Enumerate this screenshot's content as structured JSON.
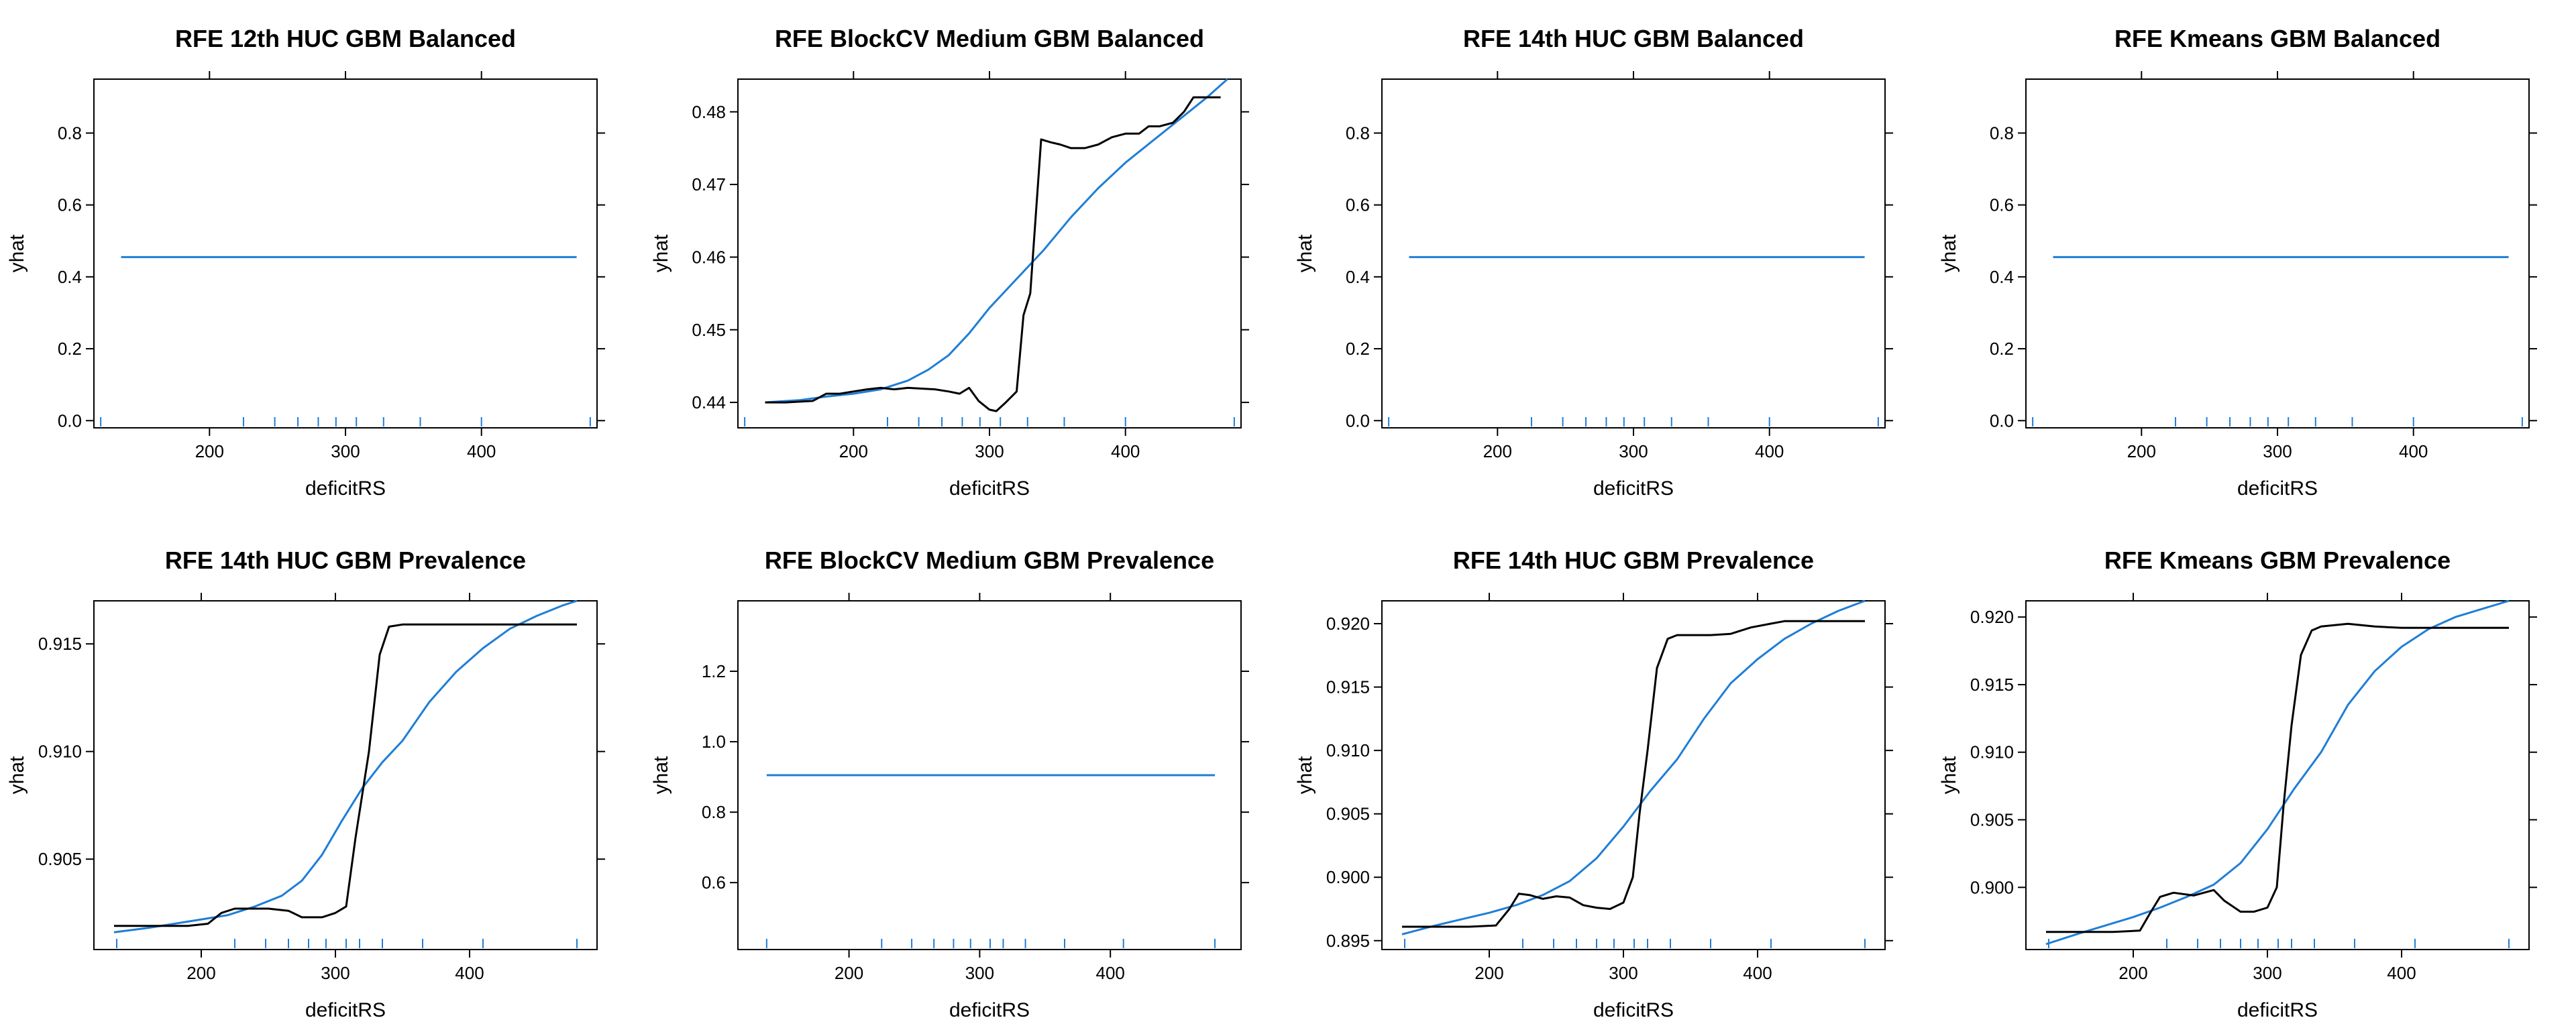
{
  "figure": {
    "colors": {
      "pdp_line": "#000000",
      "smooth_line": "#1f7ed6",
      "rug": "#1f7ed6",
      "frame": "#000000"
    },
    "rug_x": [
      120,
      225,
      248,
      265,
      280,
      293,
      308,
      328,
      355,
      400,
      480
    ]
  },
  "chart_data": [
    {
      "type": "line",
      "title": "RFE 12th HUC GBM Balanced",
      "xlabel": "deficitRS",
      "ylabel": "yhat",
      "xlim": [
        115,
        485
      ],
      "ylim": [
        -0.02,
        0.95
      ],
      "xticks": [
        200,
        300,
        400
      ],
      "yticks": [
        0.0,
        0.2,
        0.4,
        0.6,
        0.8
      ],
      "ytick_labels": [
        "0.0",
        "0.2",
        "0.4",
        "0.6",
        "0.8"
      ],
      "rug_x": [
        120,
        225,
        248,
        265,
        280,
        293,
        308,
        328,
        355,
        400,
        480
      ],
      "series": [
        {
          "role": "smooth",
          "x": [
            135,
            470
          ],
          "y": [
            0.455,
            0.455
          ]
        }
      ]
    },
    {
      "type": "line",
      "title": "RFE BlockCV Medium GBM Balanced",
      "xlabel": "deficitRS",
      "ylabel": "yhat",
      "xlim": [
        115,
        485
      ],
      "ylim": [
        0.4365,
        0.4845
      ],
      "xticks": [
        200,
        300,
        400
      ],
      "yticks": [
        0.44,
        0.45,
        0.46,
        0.47,
        0.48
      ],
      "ytick_labels": [
        "0.44",
        "0.45",
        "0.46",
        "0.47",
        "0.48"
      ],
      "rug_x": [
        120,
        225,
        248,
        265,
        280,
        293,
        308,
        328,
        355,
        400,
        480
      ],
      "series": [
        {
          "role": "pdp",
          "x": [
            135,
            150,
            170,
            180,
            190,
            200,
            210,
            220,
            230,
            240,
            250,
            260,
            270,
            278,
            285,
            292,
            300,
            305,
            312,
            320,
            325,
            330,
            338,
            345,
            352,
            360,
            370,
            380,
            390,
            400,
            410,
            417,
            425,
            435,
            443,
            450,
            470
          ],
          "y": [
            0.44,
            0.44,
            0.4402,
            0.4412,
            0.4412,
            0.4415,
            0.4418,
            0.442,
            0.4418,
            0.442,
            0.4419,
            0.4418,
            0.4415,
            0.4412,
            0.442,
            0.4402,
            0.439,
            0.4388,
            0.44,
            0.4415,
            0.452,
            0.455,
            0.4762,
            0.4758,
            0.4755,
            0.475,
            0.475,
            0.4755,
            0.4765,
            0.477,
            0.477,
            0.478,
            0.478,
            0.4785,
            0.48,
            0.482,
            0.482
          ]
        },
        {
          "role": "smooth",
          "x": [
            135,
            160,
            180,
            200,
            220,
            240,
            255,
            270,
            285,
            300,
            320,
            340,
            360,
            380,
            400,
            420,
            440,
            460,
            475
          ],
          "y": [
            0.44,
            0.4403,
            0.4408,
            0.4412,
            0.4418,
            0.443,
            0.4445,
            0.4465,
            0.4495,
            0.453,
            0.457,
            0.461,
            0.4655,
            0.4695,
            0.473,
            0.476,
            0.479,
            0.482,
            0.4845
          ]
        }
      ]
    },
    {
      "type": "line",
      "title": "RFE 14th HUC GBM Balanced",
      "xlabel": "deficitRS",
      "ylabel": "yhat",
      "xlim": [
        115,
        485
      ],
      "ylim": [
        -0.02,
        0.95
      ],
      "xticks": [
        200,
        300,
        400
      ],
      "yticks": [
        0.0,
        0.2,
        0.4,
        0.6,
        0.8
      ],
      "ytick_labels": [
        "0.0",
        "0.2",
        "0.4",
        "0.6",
        "0.8"
      ],
      "rug_x": [
        120,
        225,
        248,
        265,
        280,
        293,
        308,
        328,
        355,
        400,
        480
      ],
      "series": [
        {
          "role": "smooth",
          "x": [
            135,
            470
          ],
          "y": [
            0.455,
            0.455
          ]
        }
      ]
    },
    {
      "type": "line",
      "title": "RFE Kmeans GBM Balanced",
      "xlabel": "deficitRS",
      "ylabel": "yhat",
      "xlim": [
        115,
        485
      ],
      "ylim": [
        -0.02,
        0.95
      ],
      "xticks": [
        200,
        300,
        400
      ],
      "yticks": [
        0.0,
        0.2,
        0.4,
        0.6,
        0.8
      ],
      "ytick_labels": [
        "0.0",
        "0.2",
        "0.4",
        "0.6",
        "0.8"
      ],
      "rug_x": [
        120,
        225,
        248,
        265,
        280,
        293,
        308,
        328,
        355,
        400,
        480
      ],
      "series": [
        {
          "role": "smooth",
          "x": [
            135,
            470
          ],
          "y": [
            0.455,
            0.455
          ]
        }
      ]
    },
    {
      "type": "line",
      "title": "RFE 14th HUC GBM Prevalence",
      "xlabel": "deficitRS",
      "ylabel": "yhat",
      "xlim": [
        120,
        495
      ],
      "ylim": [
        0.9008,
        0.917
      ],
      "xticks": [
        200,
        300,
        400
      ],
      "yticks": [
        0.905,
        0.91,
        0.915
      ],
      "ytick_labels": [
        "0.905",
        "0.910",
        "0.915"
      ],
      "rug_x": [
        137,
        225,
        248,
        265,
        280,
        293,
        308,
        318,
        335,
        365,
        410,
        480
      ],
      "series": [
        {
          "role": "pdp",
          "x": [
            135,
            150,
            170,
            190,
            205,
            215,
            225,
            235,
            250,
            265,
            275,
            290,
            300,
            308,
            315,
            325,
            333,
            340,
            350,
            380,
            420,
            470,
            480
          ],
          "y": [
            0.9019,
            0.9019,
            0.9019,
            0.9019,
            0.902,
            0.9025,
            0.9027,
            0.9027,
            0.9027,
            0.9026,
            0.9023,
            0.9023,
            0.9025,
            0.9028,
            0.906,
            0.91,
            0.9145,
            0.9158,
            0.9159,
            0.9159,
            0.9159,
            0.9159,
            0.9159
          ]
        },
        {
          "role": "smooth",
          "x": [
            135,
            160,
            180,
            200,
            220,
            240,
            260,
            275,
            290,
            305,
            320,
            335,
            350,
            370,
            390,
            410,
            430,
            450,
            470,
            480
          ],
          "y": [
            0.9016,
            0.9018,
            0.902,
            0.9022,
            0.9024,
            0.9028,
            0.9033,
            0.904,
            0.9052,
            0.9068,
            0.9083,
            0.9095,
            0.9105,
            0.9123,
            0.9137,
            0.9148,
            0.9157,
            0.9163,
            0.9168,
            0.917
          ]
        }
      ]
    },
    {
      "type": "line",
      "title": "RFE BlockCV Medium GBM Prevalence",
      "xlabel": "deficitRS",
      "ylabel": "yhat",
      "xlim": [
        115,
        500
      ],
      "ylim": [
        0.41,
        1.4
      ],
      "xticks": [
        200,
        300,
        400
      ],
      "yticks": [
        0.6,
        0.8,
        1.0,
        1.2
      ],
      "ytick_labels": [
        "0.6",
        "0.8",
        "1.0",
        "1.2"
      ],
      "rug_x": [
        137,
        225,
        248,
        265,
        280,
        293,
        308,
        318,
        335,
        365,
        410,
        480
      ],
      "series": [
        {
          "role": "smooth",
          "x": [
            137,
            480
          ],
          "y": [
            0.905,
            0.905
          ]
        }
      ]
    },
    {
      "type": "line",
      "title": "RFE 14th HUC GBM Prevalence",
      "xlabel": "deficitRS",
      "ylabel": "yhat",
      "xlim": [
        120,
        495
      ],
      "ylim": [
        0.8943,
        0.9218
      ],
      "xticks": [
        200,
        300,
        400
      ],
      "yticks": [
        0.895,
        0.9,
        0.905,
        0.91,
        0.915,
        0.92
      ],
      "ytick_labels": [
        "0.895",
        "0.900",
        "0.905",
        "0.910",
        "0.915",
        "0.920"
      ],
      "rug_x": [
        137,
        225,
        248,
        265,
        280,
        293,
        308,
        318,
        335,
        365,
        410,
        480
      ],
      "series": [
        {
          "role": "pdp",
          "x": [
            135,
            160,
            185,
            205,
            215,
            222,
            230,
            240,
            250,
            260,
            270,
            280,
            290,
            300,
            307,
            312,
            318,
            325,
            333,
            340,
            350,
            365,
            380,
            395,
            410,
            420,
            440,
            460,
            480
          ],
          "y": [
            0.8961,
            0.8961,
            0.8961,
            0.8962,
            0.8975,
            0.8987,
            0.8986,
            0.8983,
            0.8985,
            0.8984,
            0.8978,
            0.8976,
            0.8975,
            0.898,
            0.9,
            0.905,
            0.91,
            0.9165,
            0.9188,
            0.9191,
            0.9191,
            0.9191,
            0.9192,
            0.9197,
            0.92,
            0.9202,
            0.9202,
            0.9202,
            0.9202
          ]
        },
        {
          "role": "smooth",
          "x": [
            135,
            160,
            180,
            200,
            220,
            240,
            260,
            280,
            300,
            320,
            340,
            360,
            380,
            400,
            420,
            440,
            460,
            480
          ],
          "y": [
            0.8955,
            0.8962,
            0.8967,
            0.8972,
            0.8978,
            0.8986,
            0.8997,
            0.9015,
            0.904,
            0.9068,
            0.9093,
            0.9125,
            0.9153,
            0.9172,
            0.9188,
            0.92,
            0.921,
            0.9218
          ]
        }
      ]
    },
    {
      "type": "line",
      "title": "RFE Kmeans GBM Prevalence",
      "xlabel": "deficitRS",
      "ylabel": "yhat",
      "xlim": [
        120,
        495
      ],
      "ylim": [
        0.8954,
        0.9212
      ],
      "xticks": [
        200,
        300,
        400
      ],
      "yticks": [
        0.9,
        0.905,
        0.91,
        0.915,
        0.92
      ],
      "ytick_labels": [
        "0.900",
        "0.905",
        "0.910",
        "0.915",
        "0.920"
      ],
      "rug_x": [
        137,
        225,
        248,
        265,
        280,
        293,
        308,
        318,
        335,
        365,
        410,
        480
      ],
      "series": [
        {
          "role": "pdp",
          "x": [
            135,
            160,
            185,
            205,
            212,
            220,
            230,
            245,
            260,
            268,
            280,
            290,
            300,
            307,
            312,
            318,
            325,
            333,
            340,
            360,
            380,
            400,
            420,
            440,
            460,
            480
          ],
          "y": [
            0.8967,
            0.8967,
            0.8967,
            0.8968,
            0.898,
            0.8993,
            0.8996,
            0.8994,
            0.8998,
            0.899,
            0.8982,
            0.8982,
            0.8985,
            0.9,
            0.906,
            0.912,
            0.9172,
            0.919,
            0.9193,
            0.9195,
            0.9193,
            0.9192,
            0.9192,
            0.9192,
            0.9192,
            0.9192
          ]
        },
        {
          "role": "smooth",
          "x": [
            135,
            160,
            180,
            200,
            220,
            240,
            260,
            280,
            300,
            320,
            340,
            360,
            380,
            400,
            420,
            440,
            460,
            480
          ],
          "y": [
            0.8958,
            0.8966,
            0.8972,
            0.8978,
            0.8985,
            0.8993,
            0.9002,
            0.9018,
            0.9043,
            0.9073,
            0.91,
            0.9135,
            0.916,
            0.9178,
            0.9191,
            0.92,
            0.9206,
            0.9212
          ]
        }
      ]
    }
  ]
}
